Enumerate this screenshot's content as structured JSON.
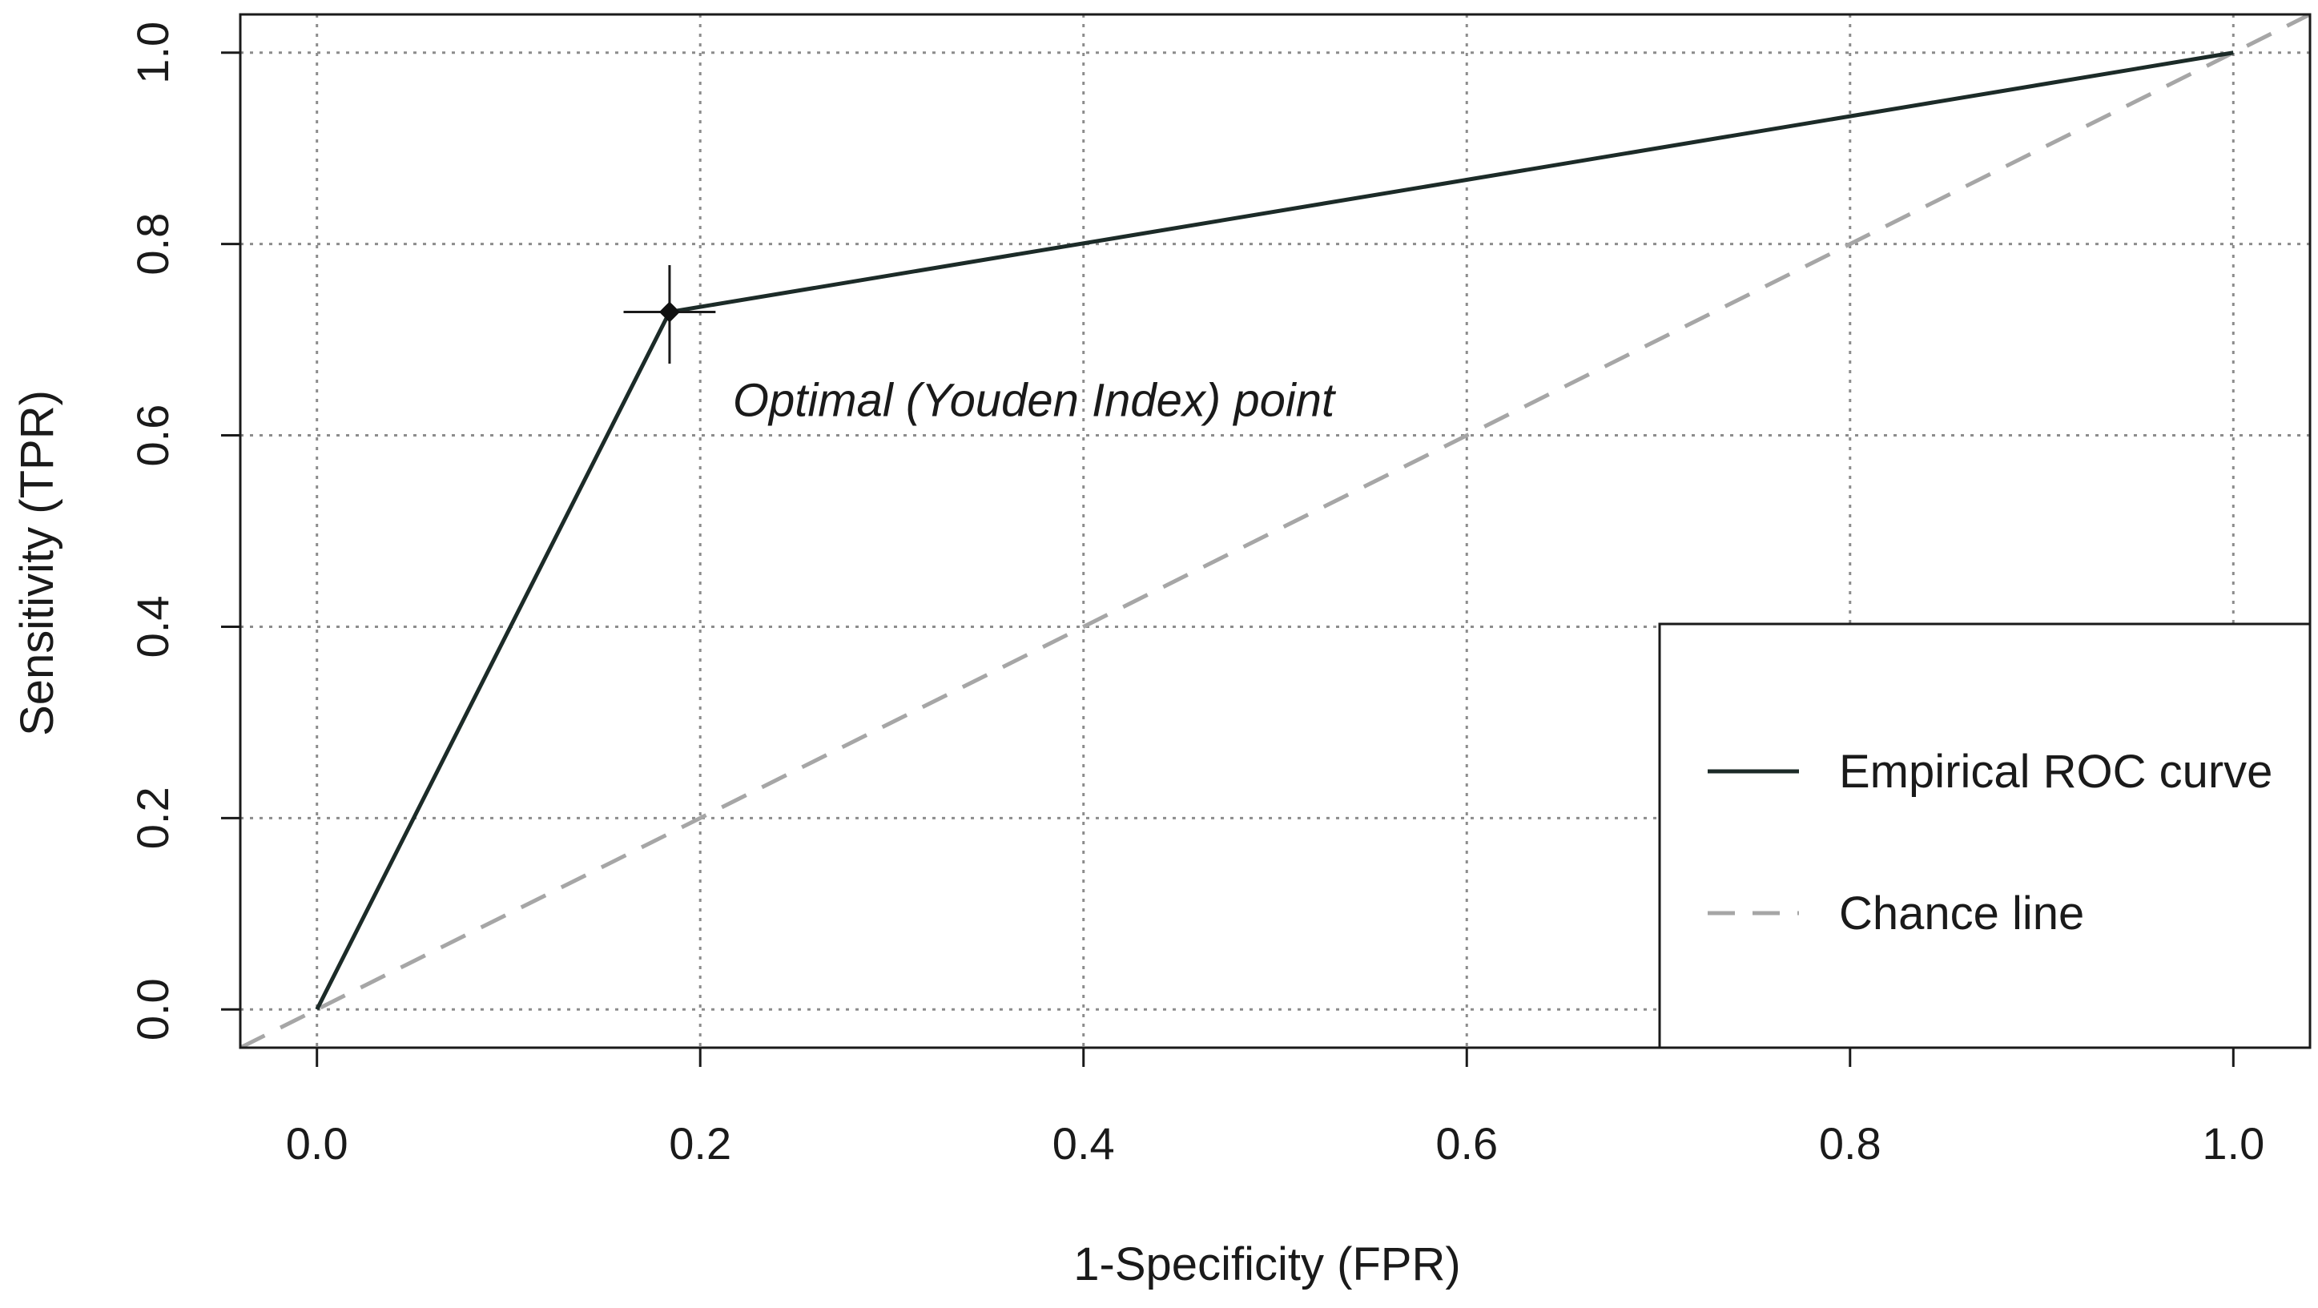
{
  "chart_data": {
    "type": "line",
    "title": "",
    "xlabel": "1-Specificity (FPR)",
    "ylabel": "Sensitivity (TPR)",
    "xlim": [
      -0.04,
      1.04
    ],
    "ylim": [
      -0.04,
      1.04
    ],
    "x_ticks": [
      0.0,
      0.2,
      0.4,
      0.6,
      0.8,
      1.0
    ],
    "x_tick_labels": [
      "0.0",
      "0.2",
      "0.4",
      "0.6",
      "0.8",
      "1.0"
    ],
    "y_ticks": [
      0.0,
      0.2,
      0.4,
      0.6,
      0.8,
      1.0
    ],
    "y_tick_labels": [
      "0.0",
      "0.2",
      "0.4",
      "0.6",
      "0.8",
      "1.0"
    ],
    "grid": true,
    "legend_position": "bottom-right",
    "series": [
      {
        "name": "Empirical ROC curve",
        "style": "solid",
        "color": "#1c2b28",
        "x": [
          0.0,
          0.184,
          1.0
        ],
        "y": [
          0.0,
          0.729,
          1.0
        ]
      },
      {
        "name": "Chance line",
        "style": "dashed",
        "color": "#a6a6a6",
        "x": [
          -0.04,
          1.04
        ],
        "y": [
          -0.04,
          1.04
        ]
      }
    ],
    "optimal_point": {
      "x": 0.184,
      "y": 0.729,
      "x_err": [
        0.16,
        0.208
      ],
      "y_err": [
        0.675,
        0.778
      ]
    },
    "annotations": [
      {
        "text": "Optimal (Youden Index) point",
        "x": 0.217,
        "y": 0.62
      }
    ]
  }
}
